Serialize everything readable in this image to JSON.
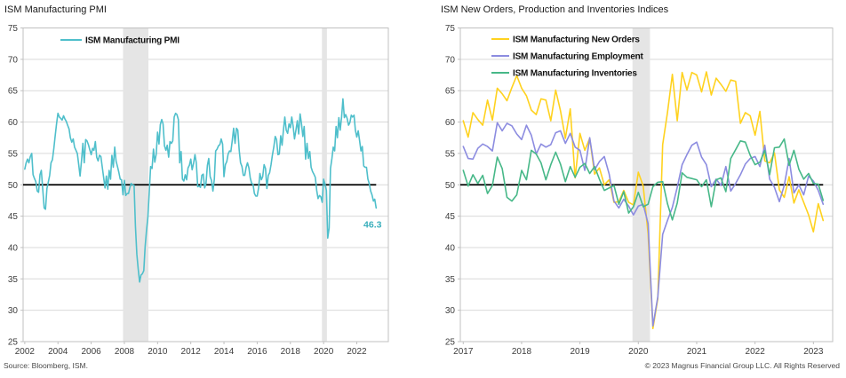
{
  "footer": {
    "source": "Source: Bloomberg, ISM.",
    "copyright": "© 2023 Magnus Financial Group LLC. All Rights Reserved"
  },
  "chart_data": [
    {
      "type": "line",
      "title": "ISM Manufacturing PMI",
      "x_start": 2002.0,
      "x_step_months": 1,
      "xlim": [
        2001.9,
        2023.9
      ],
      "ylim": [
        25,
        75
      ],
      "yticks": [
        25,
        30,
        35,
        40,
        45,
        50,
        55,
        60,
        65,
        70,
        75
      ],
      "xticks": [
        2002,
        2004,
        2006,
        2008,
        2010,
        2012,
        2014,
        2016,
        2018,
        2020,
        2022
      ],
      "grid": "horizontal",
      "grid_color": "#D9D9D9",
      "border_color": "#C0C0C0",
      "band_color": "#E5E5E5",
      "legend_position": "top-left-inside",
      "refline": {
        "y": 50,
        "color": "#000000"
      },
      "recession_bands": [
        [
          2007.92,
          2009.45
        ],
        [
          2019.9,
          2020.2
        ]
      ],
      "annotation": {
        "text": "46.3",
        "x": 2022.95,
        "y": 43.2,
        "color": "#3AAFBC"
      },
      "series": [
        {
          "name": "ISM Manufacturing PMI",
          "color": "#4FBFCB",
          "values": [
            52.5,
            53.5,
            54.1,
            53.5,
            54.5,
            55.0,
            51.6,
            51.0,
            50.5,
            49.0,
            48.8,
            51.6,
            52.3,
            49.3,
            46.3,
            46.1,
            49.4,
            50.4,
            51.5,
            53.5,
            54.0,
            55.8,
            57.8,
            59.8,
            61.4,
            60.8,
            60.6,
            60.3,
            61.0,
            60.5,
            60.1,
            59.5,
            58.9,
            57.5,
            56.8,
            57.3,
            56.0,
            55.5,
            55.0,
            53.2,
            51.4,
            53.8,
            56.6,
            53.5,
            57.2,
            57.0,
            56.4,
            55.6,
            54.8,
            55.8,
            55.5,
            56.9,
            54.4,
            53.8,
            54.7,
            54.5,
            52.9,
            51.2,
            49.5,
            51.4,
            49.3,
            52.3,
            50.9,
            54.7,
            52.8,
            56.0,
            53.8,
            52.9,
            52.0,
            50.9,
            50.8,
            48.4,
            50.7,
            48.3,
            48.6,
            48.6,
            49.6,
            50.2,
            50.0,
            49.9,
            43.4,
            38.9,
            36.6,
            34.5,
            35.6,
            35.8,
            36.3,
            40.1,
            42.8,
            44.8,
            48.9,
            52.9,
            52.6,
            55.7,
            53.6,
            54.9,
            58.4,
            56.5,
            59.6,
            60.4,
            59.7,
            56.2,
            55.5,
            56.3,
            54.4,
            56.9,
            56.6,
            57.0,
            60.8,
            61.4,
            61.2,
            60.4,
            53.5,
            55.3,
            50.9,
            50.6,
            51.6,
            50.8,
            52.7,
            53.1,
            54.1,
            52.4,
            53.4,
            54.8,
            53.5,
            49.7,
            49.8,
            49.6,
            51.5,
            51.7,
            49.5,
            50.2,
            53.1,
            54.2,
            51.3,
            50.7,
            49.0,
            50.9,
            55.4,
            55.7,
            56.2,
            56.4,
            57.3,
            56.5,
            51.3,
            53.2,
            53.7,
            54.9,
            55.4,
            55.3,
            57.1,
            59.0,
            56.6,
            59.0,
            58.7,
            55.5,
            53.5,
            52.9,
            51.5,
            51.5,
            52.8,
            53.5,
            52.7,
            51.1,
            50.2,
            50.1,
            48.6,
            48.2,
            48.2,
            49.5,
            51.8,
            50.8,
            51.3,
            53.2,
            52.6,
            49.4,
            51.5,
            51.9,
            53.2,
            54.7,
            56.0,
            57.7,
            57.2,
            54.8,
            54.9,
            57.8,
            56.3,
            58.8,
            60.8,
            58.7,
            58.2,
            59.7,
            59.1,
            60.8,
            59.3,
            57.3,
            58.7,
            60.2,
            58.1,
            61.3,
            59.8,
            57.7,
            59.3,
            54.1,
            56.6,
            54.2,
            55.3,
            52.8,
            52.1,
            51.7,
            51.2,
            49.1,
            47.8,
            48.3,
            48.1,
            47.2,
            50.9,
            50.1,
            49.1,
            41.5,
            43.1,
            52.6,
            54.2,
            56.0,
            55.4,
            59.3,
            57.5,
            60.7,
            58.7,
            60.8,
            63.7,
            60.7,
            61.2,
            60.6,
            59.5,
            59.9,
            61.1,
            60.8,
            61.1,
            58.7,
            57.6,
            58.6,
            57.1,
            55.4,
            56.1,
            53.0,
            52.8,
            52.8,
            50.9,
            50.2,
            49.0,
            48.4,
            47.4,
            47.7,
            46.3
          ]
        }
      ]
    },
    {
      "type": "line",
      "title": "ISM New Orders, Production and Inventories Indices",
      "x_start": 2017.0,
      "x_step_months": 1,
      "xlim": [
        2016.95,
        2023.33
      ],
      "ylim": [
        25,
        75
      ],
      "yticks": [
        25,
        30,
        35,
        40,
        45,
        50,
        55,
        60,
        65,
        70,
        75
      ],
      "xticks": [
        2017,
        2018,
        2019,
        2020,
        2021,
        2022,
        2023
      ],
      "grid": "horizontal",
      "grid_color": "#D9D9D9",
      "border_color": "#C0C0C0",
      "band_color": "#E5E5E5",
      "legend_position": "top-left-inside",
      "refline": {
        "y": 50,
        "color": "#000000"
      },
      "recession_bands": [
        [
          2019.9,
          2020.2
        ]
      ],
      "series": [
        {
          "name": "ISM Manufacturing New Orders",
          "color": "#FFD21F",
          "values": [
            60.2,
            57.6,
            61.5,
            60.4,
            59.5,
            63.5,
            60.3,
            65.4,
            64.5,
            63.4,
            65.5,
            67.4,
            65.4,
            64.2,
            61.9,
            61.2,
            63.7,
            63.5,
            60.2,
            65.1,
            61.8,
            57.4,
            62.1,
            51.1,
            58.2,
            55.5,
            57.4,
            51.7,
            52.7,
            50.0,
            50.8,
            47.2,
            47.3,
            49.1,
            47.2,
            46.8,
            52.0,
            49.8,
            42.2,
            27.1,
            31.8,
            56.4,
            61.5,
            67.6,
            60.2,
            67.9,
            65.1,
            67.9,
            67.5,
            64.8,
            68.0,
            64.3,
            67.0,
            66.0,
            64.9,
            66.7,
            66.5,
            59.8,
            61.5,
            61.0,
            57.9,
            61.7,
            53.8,
            53.5,
            55.1,
            49.2,
            48.0,
            51.3,
            47.1,
            49.2,
            47.2,
            45.2,
            42.5,
            47.0,
            44.3
          ]
        },
        {
          "name": "ISM Manufacturing Employment",
          "color": "#8C8CE0",
          "values": [
            56.1,
            54.2,
            54.1,
            55.8,
            56.5,
            56.1,
            55.4,
            59.9,
            58.6,
            59.8,
            59.4,
            58.1,
            57.2,
            59.5,
            57.9,
            54.9,
            56.5,
            56.0,
            56.4,
            58.3,
            58.6,
            56.6,
            58.2,
            56.0,
            55.5,
            52.3,
            57.5,
            52.4,
            53.7,
            54.5,
            51.7,
            47.4,
            46.3,
            47.7,
            46.6,
            45.2,
            46.6,
            46.9,
            43.8,
            27.5,
            32.1,
            42.1,
            44.3,
            46.4,
            49.6,
            53.2,
            54.8,
            56.3,
            56.8,
            54.4,
            53.2,
            49.7,
            50.9,
            49.9,
            52.9,
            49.0,
            50.2,
            51.6,
            53.3,
            54.2,
            54.5,
            52.9,
            56.3,
            50.9,
            49.6,
            47.3,
            49.9,
            54.2,
            48.7,
            50.0,
            48.4,
            51.4,
            50.6,
            49.1,
            46.9
          ]
        },
        {
          "name": "ISM Manufacturing Inventories",
          "color": "#47B888",
          "values": [
            52.3,
            49.8,
            51.6,
            50.2,
            51.5,
            48.6,
            49.9,
            54.4,
            52.6,
            48.0,
            47.4,
            48.4,
            52.3,
            50.8,
            55.5,
            54.9,
            53.5,
            50.8,
            53.2,
            55.2,
            53.3,
            50.5,
            52.9,
            51.2,
            52.8,
            53.4,
            51.8,
            52.9,
            50.9,
            49.1,
            49.5,
            49.9,
            46.9,
            48.9,
            45.5,
            46.5,
            48.8,
            46.5,
            46.9,
            49.7,
            50.4,
            50.5,
            47.0,
            44.4,
            47.1,
            51.9,
            51.2,
            51.0,
            50.8,
            49.7,
            50.8,
            46.5,
            50.8,
            51.1,
            48.9,
            54.2,
            55.6,
            57.0,
            56.8,
            54.7,
            53.2,
            53.6,
            55.5,
            51.6,
            55.9,
            56.0,
            57.3,
            53.1,
            55.5,
            52.5,
            50.9,
            51.8,
            50.2,
            50.1,
            47.5
          ]
        }
      ]
    }
  ]
}
